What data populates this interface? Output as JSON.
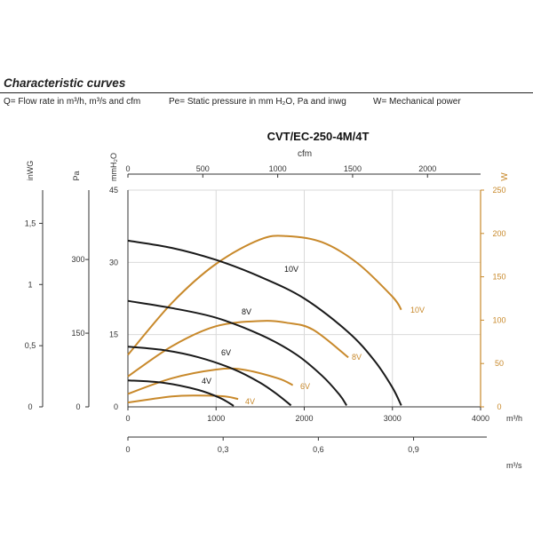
{
  "header": {
    "title": "Characteristic curves",
    "legend_q": "Q= Flow rate in m³/h, m³/s and cfm",
    "legend_pe": "Pe= Static pressure in mm H₂O, Pa and inwg",
    "legend_w": "W= Mechanical power"
  },
  "chart_data": {
    "type": "line",
    "title": "CVT/EC-250-4M/4T",
    "colors": {
      "pressure": "#1a1a1a",
      "power": "#c8892b",
      "grid": "#d9d9d9"
    },
    "x_axis": {
      "label": "m³/h",
      "range": [
        0,
        4000
      ],
      "ticks": [
        0,
        1000,
        2000,
        3000,
        4000
      ]
    },
    "x_axis_cfm": {
      "label": "cfm",
      "ticks": [
        0,
        500,
        1000,
        1500,
        2000
      ]
    },
    "x_axis_m3s": {
      "label": "m³/s",
      "ticks": [
        "0",
        "0,3",
        "0,6",
        "0,9"
      ]
    },
    "y_axis_mmh2o": {
      "label": "mmH₂O",
      "range": [
        0,
        45
      ],
      "ticks": [
        0,
        15,
        30,
        45
      ]
    },
    "y_axis_pa": {
      "label": "Pa",
      "ticks": [
        0,
        150,
        300
      ]
    },
    "y_axis_inwg": {
      "label": "inWG",
      "ticks": [
        "0",
        "0,5",
        "1",
        "1,5"
      ]
    },
    "y_axis_w": {
      "label": "W",
      "range": [
        0,
        250
      ],
      "ticks": [
        0,
        50,
        100,
        150,
        200,
        250
      ]
    },
    "pressure_series": [
      {
        "name": "10V",
        "x": [
          0,
          500,
          1000,
          1500,
          2000,
          2500,
          2800,
          3000,
          3100
        ],
        "y": [
          34.5,
          33,
          30.5,
          27,
          22.5,
          15.5,
          9.5,
          4,
          0.3
        ]
      },
      {
        "name": "8V",
        "x": [
          0,
          500,
          1000,
          1500,
          1900,
          2200,
          2400,
          2480
        ],
        "y": [
          22,
          20.5,
          18.5,
          15,
          11,
          6.5,
          2.5,
          0.3
        ]
      },
      {
        "name": "6V",
        "x": [
          0,
          400,
          800,
          1200,
          1500,
          1700,
          1850
        ],
        "y": [
          12.5,
          11.8,
          10.3,
          7.8,
          5,
          2.5,
          0.3
        ]
      },
      {
        "name": "4V",
        "x": [
          0,
          400,
          800,
          1050,
          1200
        ],
        "y": [
          5.5,
          5,
          3.5,
          1.8,
          0.2
        ]
      }
    ],
    "power_series": [
      {
        "name": "10V",
        "x": [
          0,
          500,
          1000,
          1500,
          1800,
          2200,
          2600,
          3000,
          3100
        ],
        "y": [
          60,
          120,
          165,
          193,
          197,
          190,
          166,
          127,
          112
        ]
      },
      {
        "name": "8V",
        "x": [
          0,
          500,
          1000,
          1500,
          1800,
          2100,
          2500
        ],
        "y": [
          35,
          70,
          93,
          99,
          97,
          89,
          57
        ]
      },
      {
        "name": "6V",
        "x": [
          0,
          500,
          1000,
          1300,
          1700,
          1870
        ],
        "y": [
          15,
          33,
          43,
          43,
          33,
          25
        ]
      },
      {
        "name": "4V",
        "x": [
          0,
          500,
          800,
          1100,
          1250
        ],
        "y": [
          5,
          12,
          13,
          12,
          9
        ]
      }
    ]
  }
}
